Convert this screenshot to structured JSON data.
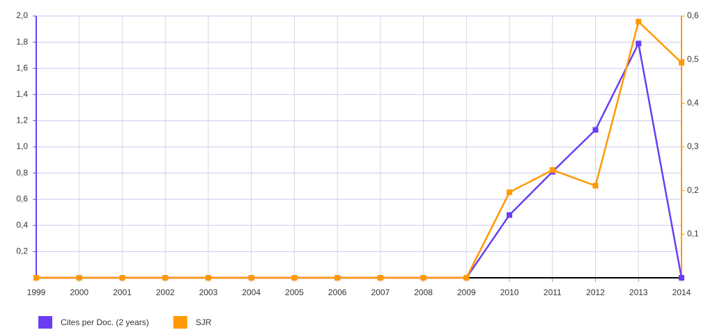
{
  "chart_data": {
    "type": "line",
    "categories": [
      "1999",
      "2000",
      "2001",
      "2002",
      "2003",
      "2004",
      "2005",
      "2006",
      "2007",
      "2008",
      "2009",
      "2010",
      "2011",
      "2012",
      "2013",
      "2014"
    ],
    "series": [
      {
        "name": "Cites per Doc. (2 years)",
        "color": "#6a3df5",
        "axis": "y",
        "values": [
          0,
          0,
          0,
          0,
          0,
          0,
          0,
          0,
          0,
          0,
          0,
          0.48,
          0.81,
          1.13,
          1.79,
          0
        ]
      },
      {
        "name": "SJR",
        "color": "#ff9900",
        "axis": "y2",
        "values": [
          0,
          0,
          0,
          0,
          0,
          0,
          0,
          0,
          0,
          0,
          0,
          0.196,
          0.247,
          0.211,
          0.587,
          0.493
        ]
      }
    ],
    "ylim": [
      0,
      2
    ],
    "yticks": [
      {
        "value": 0.2,
        "label": "0,2"
      },
      {
        "value": 0.4,
        "label": "0,4"
      },
      {
        "value": 0.6,
        "label": "0,6"
      },
      {
        "value": 0.8,
        "label": "0,8"
      },
      {
        "value": 1.0,
        "label": "1,0"
      },
      {
        "value": 1.2,
        "label": "1,2"
      },
      {
        "value": 1.4,
        "label": "1,4"
      },
      {
        "value": 1.6,
        "label": "1,6"
      },
      {
        "value": 1.8,
        "label": "1,8"
      },
      {
        "value": 2.0,
        "label": "2,0"
      }
    ],
    "y2lim": [
      0,
      0.6
    ],
    "y2ticks": [
      {
        "value": 0.1,
        "label": "0,1"
      },
      {
        "value": 0.2,
        "label": "0,2"
      },
      {
        "value": 0.3,
        "label": "0,3"
      },
      {
        "value": 0.4,
        "label": "0,4"
      },
      {
        "value": 0.5,
        "label": "0,5"
      },
      {
        "value": 0.6,
        "label": "0,6"
      }
    ],
    "grid": true
  }
}
